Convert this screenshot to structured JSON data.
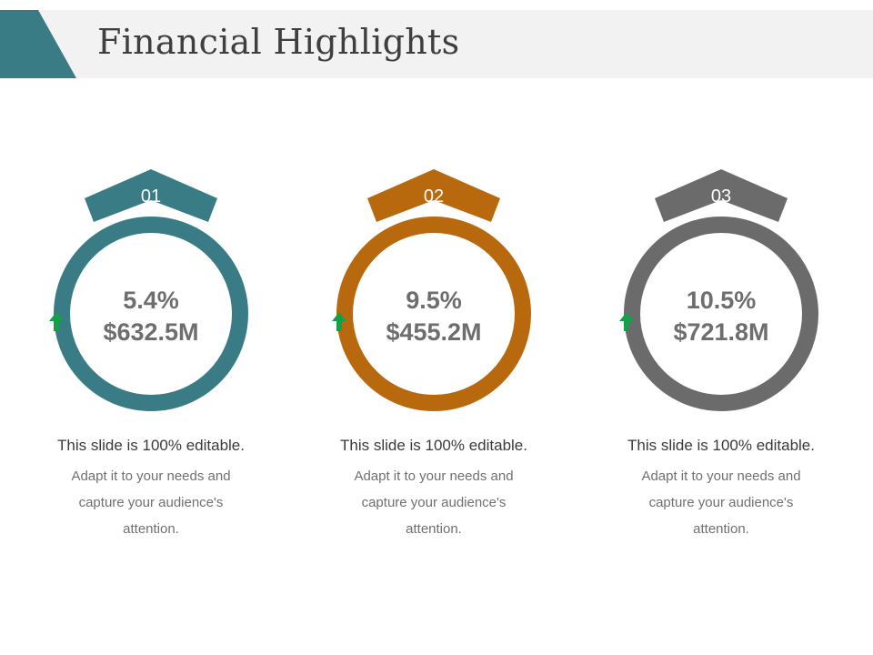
{
  "title": "Financial Highlights",
  "colors": {
    "header_band": "#f2f2f2",
    "header_accent": "#397c86",
    "arrow": "#14a04a"
  },
  "cards": [
    {
      "number": "01",
      "percent": "5.4%",
      "amount": "$632.5M",
      "trend_icon": "arrow-up-icon",
      "color": "#397c86",
      "desc_title": "This slide is 100% editable.",
      "desc_body": "Adapt it to your needs and capture your audience's attention."
    },
    {
      "number": "02",
      "percent": "9.5%",
      "amount": "$455.2M",
      "trend_icon": "arrow-up-icon",
      "color": "#b8690d",
      "desc_title": "This slide is 100% editable.",
      "desc_body": "Adapt it to your needs and capture your audience's attention."
    },
    {
      "number": "03",
      "percent": "10.5%",
      "amount": "$721.8M",
      "trend_icon": "arrow-up-icon",
      "color": "#6b6b6b",
      "desc_title": "This slide is 100% editable.",
      "desc_body": "Adapt it to your needs and capture your audience's attention."
    }
  ]
}
